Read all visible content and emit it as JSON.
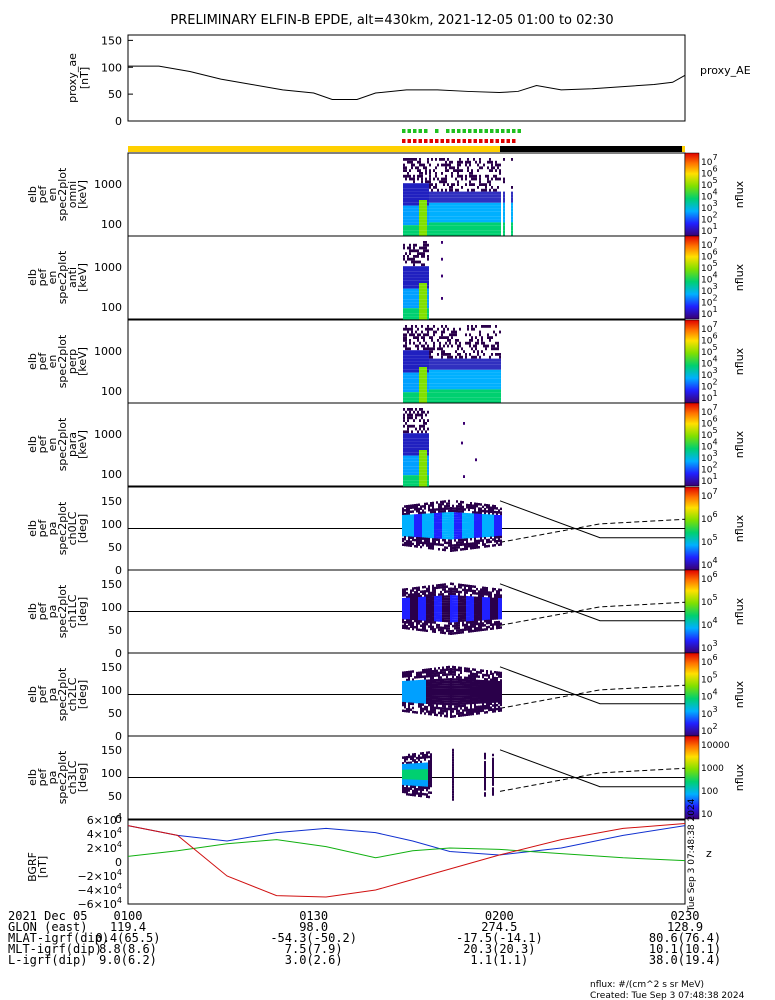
{
  "title": "PRELIMINARY ELFIN-B EPDE, alt=430km, 2021-12-05 01:00 to 02:30",
  "colors": {
    "bar_yellow": "#ffd000",
    "bar_black": "#000000",
    "marker_green": "#20c020",
    "marker_red": "#e00000",
    "bx": "#1030d0",
    "by": "#10b010",
    "bz": "#d01010"
  },
  "top_panel": {
    "ylabel_lines": [
      "proxy_ae",
      "[nT]"
    ],
    "yticks": [
      "150",
      "100",
      "50",
      "0"
    ],
    "legend": "proxy_AE"
  },
  "spec_panels": [
    {
      "ylabel_lines": [
        "elb",
        "pef",
        "en",
        "spec2plot",
        "omni",
        "[keV]"
      ],
      "yticks": [
        "1000",
        "100"
      ],
      "cb_ticks": [
        "10^7",
        "10^6",
        "10^5",
        "10^4",
        "10^3",
        "10^2",
        "10^1"
      ],
      "cb_label": "nflux"
    },
    {
      "ylabel_lines": [
        "elb",
        "pef",
        "en",
        "spec2plot",
        "anti",
        "[keV]"
      ],
      "yticks": [
        "1000",
        "100"
      ],
      "cb_ticks": [
        "10^7",
        "10^6",
        "10^5",
        "10^4",
        "10^3",
        "10^2",
        "10^1"
      ],
      "cb_label": "nflux"
    },
    {
      "ylabel_lines": [
        "elb",
        "pef",
        "en",
        "spec2plot",
        "perp",
        "[keV]"
      ],
      "yticks": [
        "1000",
        "100"
      ],
      "cb_ticks": [
        "10^7",
        "10^6",
        "10^5",
        "10^4",
        "10^3",
        "10^2",
        "10^1"
      ],
      "cb_label": "nflux"
    },
    {
      "ylabel_lines": [
        "elb",
        "pef",
        "en",
        "spec2plot",
        "para",
        "[keV]"
      ],
      "yticks": [
        "1000",
        "100"
      ],
      "cb_ticks": [
        "10^7",
        "10^6",
        "10^5",
        "10^4",
        "10^3",
        "10^2",
        "10^1"
      ],
      "cb_label": "nflux"
    }
  ],
  "pa_panels": [
    {
      "ylabel_lines": [
        "elb",
        "pef",
        "pa",
        "spec2plot",
        "ch0LC",
        "[deg]"
      ],
      "yticks": [
        "150",
        "100",
        "50",
        "0"
      ],
      "cb_ticks": [
        "10^7",
        "10^6",
        "10^5",
        "10^4"
      ],
      "cb_label": "nflux"
    },
    {
      "ylabel_lines": [
        "elb",
        "pef",
        "pa",
        "spec2plot",
        "ch1LC",
        "[deg]"
      ],
      "yticks": [
        "150",
        "100",
        "50",
        "0"
      ],
      "cb_ticks": [
        "10^6",
        "10^5",
        "10^4",
        "10^3"
      ],
      "cb_label": "nflux"
    },
    {
      "ylabel_lines": [
        "elb",
        "pef",
        "pa",
        "spec2plot",
        "ch2LC",
        "[deg]"
      ],
      "yticks": [
        "150",
        "100",
        "50",
        "0"
      ],
      "cb_ticks": [
        "10^6",
        "10^5",
        "10^4",
        "10^3",
        "10^2"
      ],
      "cb_label": "nflux"
    },
    {
      "ylabel_lines": [
        "elb",
        "pef",
        "pa",
        "spec2plot",
        "ch3LC",
        "[deg]"
      ],
      "yticks": [
        "150",
        "100",
        "50",
        "0"
      ],
      "cb_ticks": [
        "10000",
        "1000",
        "100",
        "10"
      ],
      "cb_label": "nflux"
    }
  ],
  "bgrf_panel": {
    "ylabel_lines": [
      "BGRF",
      "[nT]"
    ],
    "yticks": [
      "6×10^4",
      "4×10^4",
      "2×10^4",
      "0",
      "−2×10^4",
      "−4×10^4",
      "−6×10^4"
    ],
    "labels": [
      "x",
      "y",
      "z"
    ],
    "side_note": "Tue Sep  3 07:48:38 2024"
  },
  "footer": {
    "rows": [
      {
        "label": "2021 Dec 05",
        "values": [
          "0100",
          "0130",
          "0200",
          "0230"
        ]
      },
      {
        "label": "GLON (east)",
        "values": [
          "119.4",
          "98.0",
          "274.5",
          "128.9"
        ]
      },
      {
        "label": "MLAT-igrf(dip)",
        "values": [
          "0.4(65.5)",
          "-54.3(-50.2)",
          "-17.5(-14.1)",
          "80.6(76.4)"
        ]
      },
      {
        "label": "MLT-igrf(dip)",
        "values": [
          "8.8(8.6)",
          "7.5(7.9)",
          "20.3(20.3)",
          "10.1(10.1)"
        ]
      },
      {
        "label": "L-igrf(dip)",
        "values": [
          "9.0(6.2)",
          "3.0(2.6)",
          "1.1(1.1)",
          "38.0(19.4)"
        ]
      }
    ],
    "note1": "nflux: #/(cm^2 s sr MeV)",
    "note2": "Created: Tue Sep  3 07:48:38 2024"
  },
  "chart_data": [
    {
      "type": "line",
      "name": "proxy_AE",
      "xlabel": "",
      "ylabel": "proxy_ae [nT]",
      "ylim": [
        0,
        160
      ],
      "x": [
        "01:00",
        "01:05",
        "01:10",
        "01:15",
        "01:20",
        "01:25",
        "01:30",
        "01:33",
        "01:37",
        "01:40",
        "01:45",
        "01:50",
        "01:55",
        "02:00",
        "02:03",
        "02:06",
        "02:10",
        "02:15",
        "02:20",
        "02:25",
        "02:28",
        "02:30"
      ],
      "values": [
        102,
        102,
        92,
        78,
        68,
        58,
        52,
        40,
        40,
        52,
        58,
        58,
        55,
        53,
        55,
        66,
        58,
        60,
        64,
        68,
        72,
        85
      ]
    },
    {
      "type": "line",
      "name": "BGRF",
      "ylabel": "BGRF [nT]",
      "ylim": [
        -60000,
        60000
      ],
      "x_minutes": [
        0,
        8,
        16,
        24,
        32,
        40,
        46,
        52,
        60,
        70,
        80,
        90
      ],
      "series": [
        {
          "name": "x",
          "values": [
            52000,
            38000,
            30000,
            42000,
            48000,
            42000,
            30000,
            15000,
            10000,
            20000,
            38000,
            52000
          ]
        },
        {
          "name": "y",
          "values": [
            8000,
            16000,
            26000,
            32000,
            22000,
            6000,
            16000,
            20000,
            18000,
            12000,
            6000,
            2000
          ]
        },
        {
          "name": "z",
          "values": [
            52000,
            38000,
            -20000,
            -48000,
            -50000,
            -40000,
            -25000,
            -10000,
            10000,
            32000,
            48000,
            55000
          ]
        }
      ]
    }
  ]
}
